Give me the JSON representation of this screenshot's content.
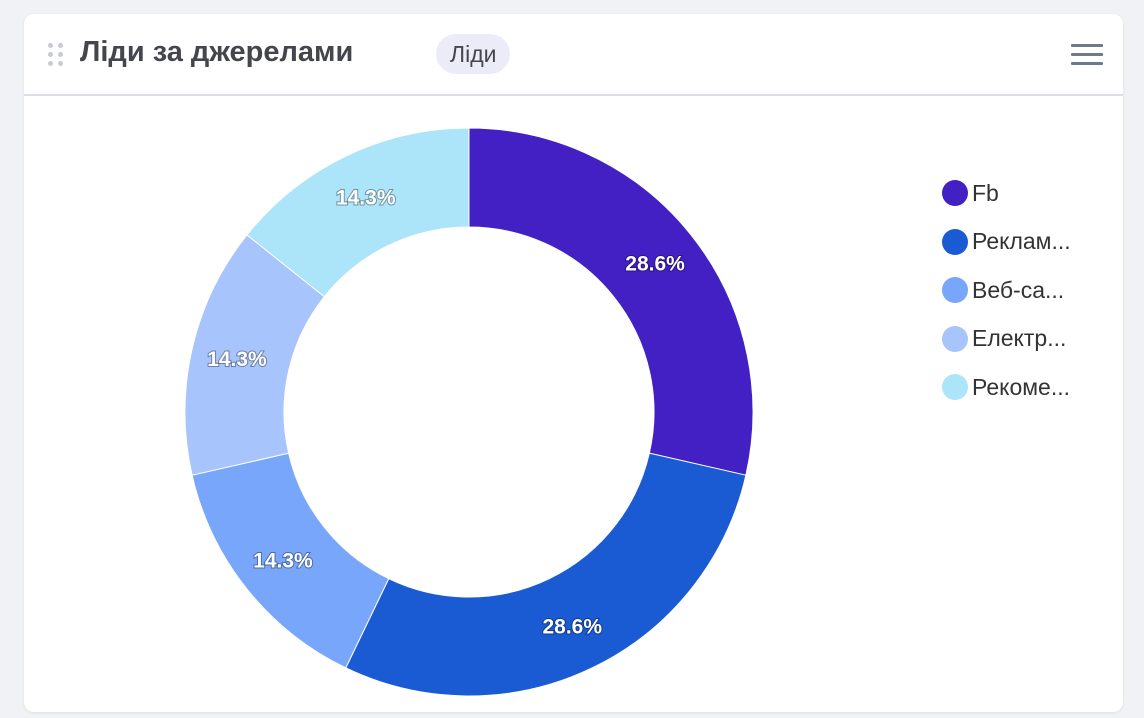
{
  "header": {
    "title": "Ліди за джерелами",
    "badge": "Ліди"
  },
  "icons": {
    "drag": "drag-handle-icon",
    "menu": "hamburger-menu-icon"
  },
  "chart_data": {
    "type": "pie",
    "donut": true,
    "title": "",
    "categories": [
      "Fb",
      "Реклам...",
      "Веб-са...",
      "Електр...",
      "Рекоме..."
    ],
    "values": [
      2,
      2,
      1,
      1,
      1
    ],
    "data_labels": [
      "28.6%",
      "28.6%",
      "14.3%",
      "14.3%",
      "14.3%"
    ],
    "colors": [
      "#4220c4",
      "#1a5bd3",
      "#78a6fb",
      "#a8c4fc",
      "#ace4f9"
    ],
    "legend_position": "right"
  }
}
